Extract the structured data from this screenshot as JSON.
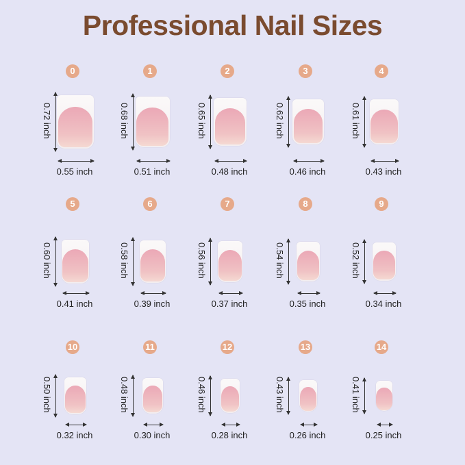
{
  "title": "Professional Nail Sizes",
  "colors": {
    "background": "#e4e4f5",
    "title": "#7a4b2f",
    "badge": "#e6a98a",
    "nail_bed": "#eba8b6",
    "nail_tip": "#fbf9f9"
  },
  "sizes": [
    {
      "number": "0",
      "width": "0.55 inch",
      "length": "0.72 inch",
      "w": 0.55,
      "l": 0.72
    },
    {
      "number": "1",
      "width": "0.51 inch",
      "length": "0.68 inch",
      "w": 0.51,
      "l": 0.68
    },
    {
      "number": "2",
      "width": "0.48 inch",
      "length": "0.65 inch",
      "w": 0.48,
      "l": 0.65
    },
    {
      "number": "3",
      "width": "0.46 inch",
      "length": "0.62 inch",
      "w": 0.46,
      "l": 0.62
    },
    {
      "number": "4",
      "width": "0.43 inch",
      "length": "0.61 inch",
      "w": 0.43,
      "l": 0.61
    },
    {
      "number": "5",
      "width": "0.41 inch",
      "length": "0.60 inch",
      "w": 0.41,
      "l": 0.6
    },
    {
      "number": "6",
      "width": "0.39 inch",
      "length": "0.58 inch",
      "w": 0.39,
      "l": 0.58
    },
    {
      "number": "7",
      "width": "0.37 inch",
      "length": "0.56 inch",
      "w": 0.37,
      "l": 0.56
    },
    {
      "number": "8",
      "width": "0.35 inch",
      "length": "0.54 inch",
      "w": 0.35,
      "l": 0.54
    },
    {
      "number": "9",
      "width": "0.34 inch",
      "length": "0.52 inch",
      "w": 0.34,
      "l": 0.52
    },
    {
      "number": "10",
      "width": "0.32 inch",
      "length": "0.50 inch",
      "w": 0.32,
      "l": 0.5
    },
    {
      "number": "11",
      "width": "0.30 inch",
      "length": "0.48 inch",
      "w": 0.3,
      "l": 0.48
    },
    {
      "number": "12",
      "width": "0.28 inch",
      "length": "0.46 inch",
      "w": 0.28,
      "l": 0.46
    },
    {
      "number": "13",
      "width": "0.26 inch",
      "length": "0.43 inch",
      "w": 0.26,
      "l": 0.43
    },
    {
      "number": "14",
      "width": "0.25 inch",
      "length": "0.41 inch",
      "w": 0.25,
      "l": 0.41
    }
  ]
}
